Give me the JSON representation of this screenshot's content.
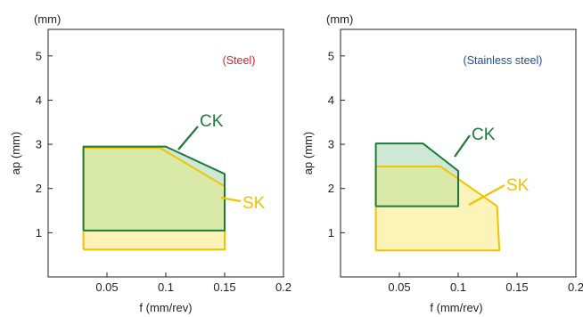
{
  "colors": {
    "ck_stroke": "#1e7a3c",
    "ck_fill": "#cfe8d6",
    "sk_stroke": "#f2c200",
    "sk_fill": "#fcf3b8",
    "overlap_fill": "#d8e9a8",
    "steel_note": "#d4202a",
    "stainless_note": "#1f4e96"
  },
  "chart_data": [
    {
      "type": "area",
      "note": "(Steel)",
      "y_unit": "(mm)",
      "xlabel": "f (mm/rev)",
      "ylabel": "ap (mm)",
      "xlim": [
        0,
        0.2
      ],
      "ylim": [
        0,
        5.6
      ],
      "x_ticks": [
        0.05,
        0.1,
        0.15,
        0.2
      ],
      "x_tick_labels": [
        "0.05",
        "0.1",
        "0.15",
        "0.2"
      ],
      "y_ticks": [
        1,
        2,
        3,
        4,
        5
      ],
      "y_tick_labels": [
        "1",
        "2",
        "3",
        "4",
        "5"
      ],
      "grid": false,
      "series": [
        {
          "name": "CK",
          "polygon": [
            [
              0.03,
              1.05
            ],
            [
              0.03,
              2.95
            ],
            [
              0.1,
              2.95
            ],
            [
              0.15,
              2.33
            ],
            [
              0.15,
              1.05
            ]
          ]
        },
        {
          "name": "SK",
          "polygon": [
            [
              0.03,
              0.62
            ],
            [
              0.03,
              2.92
            ],
            [
              0.095,
              2.92
            ],
            [
              0.15,
              2.05
            ],
            [
              0.15,
              0.62
            ]
          ]
        }
      ]
    },
    {
      "type": "area",
      "note": "(Stainless steel)",
      "y_unit": "(mm)",
      "xlabel": "f (mm/rev)",
      "ylabel": "ap (mm)",
      "xlim": [
        0,
        0.2
      ],
      "ylim": [
        0,
        5.6
      ],
      "x_ticks": [
        0.05,
        0.1,
        0.15,
        0.2
      ],
      "x_tick_labels": [
        "0.05",
        "0.1",
        "0.15",
        "0.2"
      ],
      "y_ticks": [
        1,
        2,
        3,
        4,
        5
      ],
      "y_tick_labels": [
        "1",
        "2",
        "3",
        "4",
        "5"
      ],
      "grid": false,
      "series": [
        {
          "name": "CK",
          "polygon": [
            [
              0.03,
              1.6
            ],
            [
              0.03,
              3.02
            ],
            [
              0.07,
              3.02
            ],
            [
              0.1,
              2.4
            ],
            [
              0.1,
              1.6
            ]
          ]
        },
        {
          "name": "SK",
          "polygon": [
            [
              0.03,
              0.6
            ],
            [
              0.03,
              2.5
            ],
            [
              0.085,
              2.5
            ],
            [
              0.133,
              1.6
            ],
            [
              0.135,
              0.6
            ]
          ]
        }
      ]
    }
  ]
}
